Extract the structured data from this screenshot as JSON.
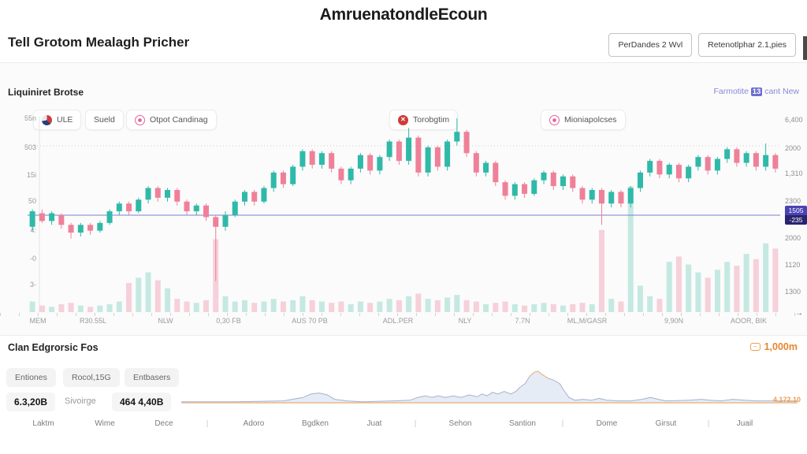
{
  "header": {
    "title": "AmruenatondleEcoun",
    "subtitle": "Tell Grotom Mealagh Pricher",
    "buttons": [
      {
        "label": "PerDandes 2 Wvl"
      },
      {
        "label": "Retenotlphar 2.1,pies"
      }
    ]
  },
  "chart_panel": {
    "title": "Liquiniret Brotse",
    "link_prefix": "Farmotite",
    "link_badge": "13",
    "link_suffix": "cant New",
    "chips": [
      {
        "label": "ULE",
        "icon": "team-logo-icon"
      },
      {
        "label": "Sueld",
        "icon": null
      },
      {
        "label": "Otpot Candinag",
        "icon": "at-ring-icon"
      },
      {
        "label": "Torobgtim",
        "icon": "close-circle-icon"
      },
      {
        "label": "Mioniapolcses",
        "icon": "target-ring-icon"
      }
    ],
    "y_axis_left": [
      "55n",
      "503",
      "15i",
      "50",
      "4:",
      "-0",
      "3-"
    ],
    "y_axis_right": [
      "6,400",
      "2000",
      "1,310",
      "2300",
      "2000",
      "1120",
      "1300"
    ],
    "price_tag": {
      "price": "1505",
      "change": "-235"
    },
    "x_axis": [
      "MEM",
      "R30.55L",
      "NLW",
      "0,30 FB",
      "AUS 70 PB",
      "ADL.PER",
      "NLY",
      "7.7N",
      "ML,M/GASR",
      "9,90N",
      "AOOR, BIK"
    ]
  },
  "bottom_panel": {
    "title": "Clan Edgrorsic Fos",
    "value_badge": "1,000m",
    "tabs": [
      "Entiones",
      "Rocol,15G",
      "Entbasers"
    ],
    "stats": {
      "primary": "6.3,20B",
      "label": "Sivoirge",
      "secondary": "464 4,40B"
    },
    "spark_value": "4,172.10",
    "x_axis": [
      "Laktm",
      "Wime",
      "Dece",
      "|",
      "Adoro",
      "Bgdken",
      "Juat",
      "|",
      "Sehon",
      "Santion",
      "|",
      "Dome",
      "Girsut",
      "|",
      "Juail"
    ]
  },
  "colors": {
    "candle_up": "#2fb9a8",
    "candle_down": "#ef8099",
    "volume_up": "#c5e9e2",
    "volume_down": "#f6d0da",
    "baseline_purple": "#7b7fd0",
    "badge_purple": "#4a43b2",
    "badge_dark": "#29246e",
    "accent_orange": "#e7862f",
    "link_purple": "#8789d6",
    "spark_fill": "#e3eaf5",
    "spark_stroke": "#a8b1c7",
    "spark_base": "#ecb98b",
    "grid": "#cccccc"
  },
  "chart_data": [
    {
      "type": "candlestick",
      "title": "Liquiniret Brotse",
      "value_scale": [
        0,
        100
      ],
      "baseline_value": 50,
      "x_tick_labels": [
        "MEM",
        "R30.55L",
        "NLW",
        "0,30 FB",
        "AUS 70 PB",
        "ADL.PER",
        "NLY",
        "7.7N",
        "ML,M/GASR",
        "9,90N",
        "AOOR, BIK"
      ],
      "columns": [
        "open",
        "high",
        "low",
        "close",
        "volume"
      ],
      "candles": [
        [
          44,
          53,
          42,
          52,
          8
        ],
        [
          51,
          53,
          46,
          47,
          5
        ],
        [
          47,
          52,
          45,
          51,
          4
        ],
        [
          50,
          51,
          43,
          45,
          6
        ],
        [
          45,
          46,
          38,
          41,
          7
        ],
        [
          41,
          46,
          39,
          45,
          5
        ],
        [
          45,
          46,
          40,
          42,
          4
        ],
        [
          42,
          47,
          41,
          46,
          5
        ],
        [
          46,
          53,
          45,
          52,
          6
        ],
        [
          52,
          57,
          50,
          56,
          8
        ],
        [
          56,
          57,
          50,
          52,
          22
        ],
        [
          52,
          59,
          51,
          58,
          26
        ],
        [
          58,
          65,
          56,
          64,
          30
        ],
        [
          64,
          65,
          57,
          59,
          24
        ],
        [
          59,
          64,
          57,
          63,
          18
        ],
        [
          63,
          64,
          55,
          57,
          10
        ],
        [
          57,
          58,
          50,
          52,
          8
        ],
        [
          52,
          56,
          50,
          55,
          7
        ],
        [
          55,
          56,
          47,
          49,
          9
        ],
        [
          49,
          50,
          16,
          44,
          55
        ],
        [
          44,
          52,
          42,
          50,
          12
        ],
        [
          50,
          58,
          49,
          57,
          8
        ],
        [
          57,
          63,
          55,
          62,
          9
        ],
        [
          62,
          63,
          55,
          57,
          7
        ],
        [
          57,
          65,
          56,
          64,
          8
        ],
        [
          64,
          73,
          62,
          72,
          10
        ],
        [
          72,
          73,
          64,
          66,
          8
        ],
        [
          66,
          76,
          65,
          75,
          9
        ],
        [
          75,
          84,
          73,
          83,
          12
        ],
        [
          83,
          84,
          74,
          76,
          9
        ],
        [
          76,
          83,
          74,
          82,
          8
        ],
        [
          82,
          83,
          72,
          74,
          7
        ],
        [
          74,
          75,
          66,
          68,
          8
        ],
        [
          68,
          75,
          66,
          74,
          6
        ],
        [
          74,
          82,
          72,
          81,
          8
        ],
        [
          81,
          82,
          71,
          73,
          7
        ],
        [
          73,
          81,
          71,
          80,
          8
        ],
        [
          80,
          89,
          78,
          88,
          10
        ],
        [
          88,
          89,
          76,
          78,
          9
        ],
        [
          78,
          95,
          76,
          90,
          12
        ],
        [
          90,
          91,
          70,
          72,
          14
        ],
        [
          72,
          86,
          70,
          85,
          10
        ],
        [
          85,
          86,
          73,
          75,
          9
        ],
        [
          75,
          89,
          73,
          88,
          11
        ],
        [
          88,
          100,
          86,
          93,
          13
        ],
        [
          93,
          94,
          80,
          82,
          9
        ],
        [
          82,
          83,
          70,
          72,
          8
        ],
        [
          72,
          78,
          70,
          77,
          6
        ],
        [
          77,
          78,
          65,
          67,
          7
        ],
        [
          67,
          68,
          58,
          60,
          8
        ],
        [
          60,
          67,
          58,
          66,
          6
        ],
        [
          66,
          67,
          59,
          61,
          5
        ],
        [
          61,
          69,
          60,
          68,
          6
        ],
        [
          68,
          73,
          66,
          72,
          7
        ],
        [
          72,
          73,
          63,
          65,
          6
        ],
        [
          65,
          71,
          63,
          70,
          5
        ],
        [
          70,
          71,
          62,
          64,
          6
        ],
        [
          64,
          65,
          56,
          58,
          7
        ],
        [
          58,
          64,
          56,
          63,
          6
        ],
        [
          63,
          64,
          45,
          56,
          62
        ],
        [
          56,
          63,
          54,
          62,
          10
        ],
        [
          62,
          63,
          54,
          56,
          8
        ],
        [
          56,
          65,
          54,
          64,
          95
        ],
        [
          64,
          73,
          62,
          72,
          20
        ],
        [
          72,
          79,
          70,
          78,
          12
        ],
        [
          78,
          79,
          69,
          71,
          10
        ],
        [
          71,
          77,
          69,
          76,
          38
        ],
        [
          76,
          77,
          67,
          69,
          42
        ],
        [
          69,
          76,
          67,
          75,
          36
        ],
        [
          75,
          81,
          73,
          80,
          30
        ],
        [
          80,
          81,
          71,
          73,
          26
        ],
        [
          73,
          80,
          71,
          79,
          32
        ],
        [
          79,
          85,
          77,
          84,
          38
        ],
        [
          84,
          85,
          75,
          77,
          35
        ],
        [
          77,
          83,
          75,
          82,
          44
        ],
        [
          82,
          83,
          73,
          75,
          40
        ],
        [
          75,
          87,
          73,
          81,
          52
        ],
        [
          81,
          82,
          72,
          74,
          48
        ]
      ]
    },
    {
      "type": "area",
      "title": "Clan Edgrorsic Fos",
      "x_tick_labels": [
        "Laktm",
        "Wime",
        "Dece",
        "Adoro",
        "Bgdken",
        "Juat",
        "Sehon",
        "Santion",
        "Dome",
        "Girsut",
        "Juail"
      ],
      "x_percent": [
        0,
        9,
        16.6,
        19.8,
        21.1,
        22.4,
        23.7,
        24.9,
        26.9,
        29.4,
        34.5,
        37.1,
        38.4,
        39.6,
        40.7,
        41.7,
        42.8,
        44.1,
        45.4,
        46.7,
        48,
        48.8,
        49.6,
        50.5,
        51.4,
        52.4,
        53.5,
        54.3,
        55,
        55.8,
        56.5,
        57.3,
        57.9,
        58.6,
        59.5,
        60.4,
        61.4,
        62.1,
        62.9,
        63.9,
        65.2,
        66.5,
        67.8,
        69.1,
        71,
        72.9,
        74.8,
        76.1,
        77.4,
        78.6,
        82.5,
        84.4,
        85.7,
        87.6,
        89.5,
        91.4,
        93.4,
        95.9,
        98.5,
        100
      ],
      "values": [
        3,
        3,
        6,
        17,
        28,
        31,
        25,
        11,
        6,
        3,
        6,
        8,
        17,
        22,
        17,
        22,
        17,
        22,
        17,
        25,
        19,
        28,
        22,
        33,
        28,
        36,
        28,
        36,
        50,
        61,
        83,
        97,
        100,
        89,
        78,
        72,
        61,
        39,
        17,
        8,
        11,
        8,
        14,
        8,
        6,
        6,
        11,
        17,
        11,
        6,
        8,
        11,
        8,
        6,
        11,
        8,
        6,
        6,
        6,
        6
      ]
    }
  ]
}
